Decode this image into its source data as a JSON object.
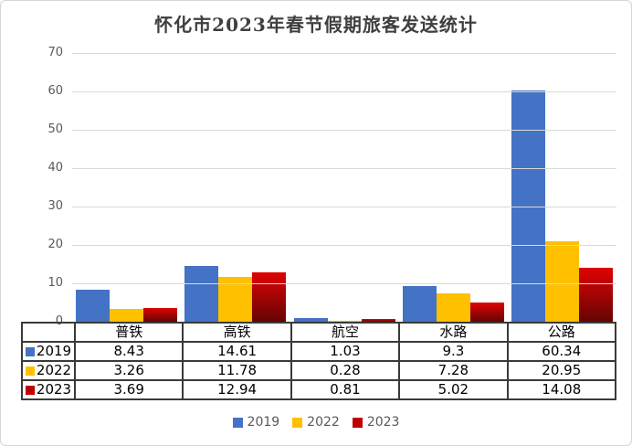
{
  "title": "怀化市2023年春节假期旅客发送统计",
  "chart_data": {
    "type": "bar",
    "title": "怀化市2023年春节假期旅客发送统计",
    "categories": [
      "普铁",
      "高铁",
      "航空",
      "水路",
      "公路"
    ],
    "series": [
      {
        "name": "2019",
        "color": "#4472C4",
        "values": [
          8.43,
          14.61,
          1.03,
          9.3,
          60.34
        ]
      },
      {
        "name": "2022",
        "color": "#FFC000",
        "values": [
          3.26,
          11.78,
          0.28,
          7.28,
          20.95
        ]
      },
      {
        "name": "2023",
        "color": "#C00000",
        "gradient": [
          "#E00303",
          "#640404"
        ],
        "values": [
          3.69,
          12.94,
          0.81,
          5.02,
          14.08
        ]
      }
    ],
    "xlabel": "",
    "ylabel": "",
    "ylim": [
      0,
      70
    ],
    "yticks": [
      0,
      10,
      20,
      30,
      40,
      50,
      60,
      70
    ],
    "grid": true,
    "gridline_color": "#d9d9d9",
    "tick_label_color": "#595959",
    "legend_position": "bottom",
    "data_table_shown": true,
    "table_border_color": "#3a3a3a"
  }
}
